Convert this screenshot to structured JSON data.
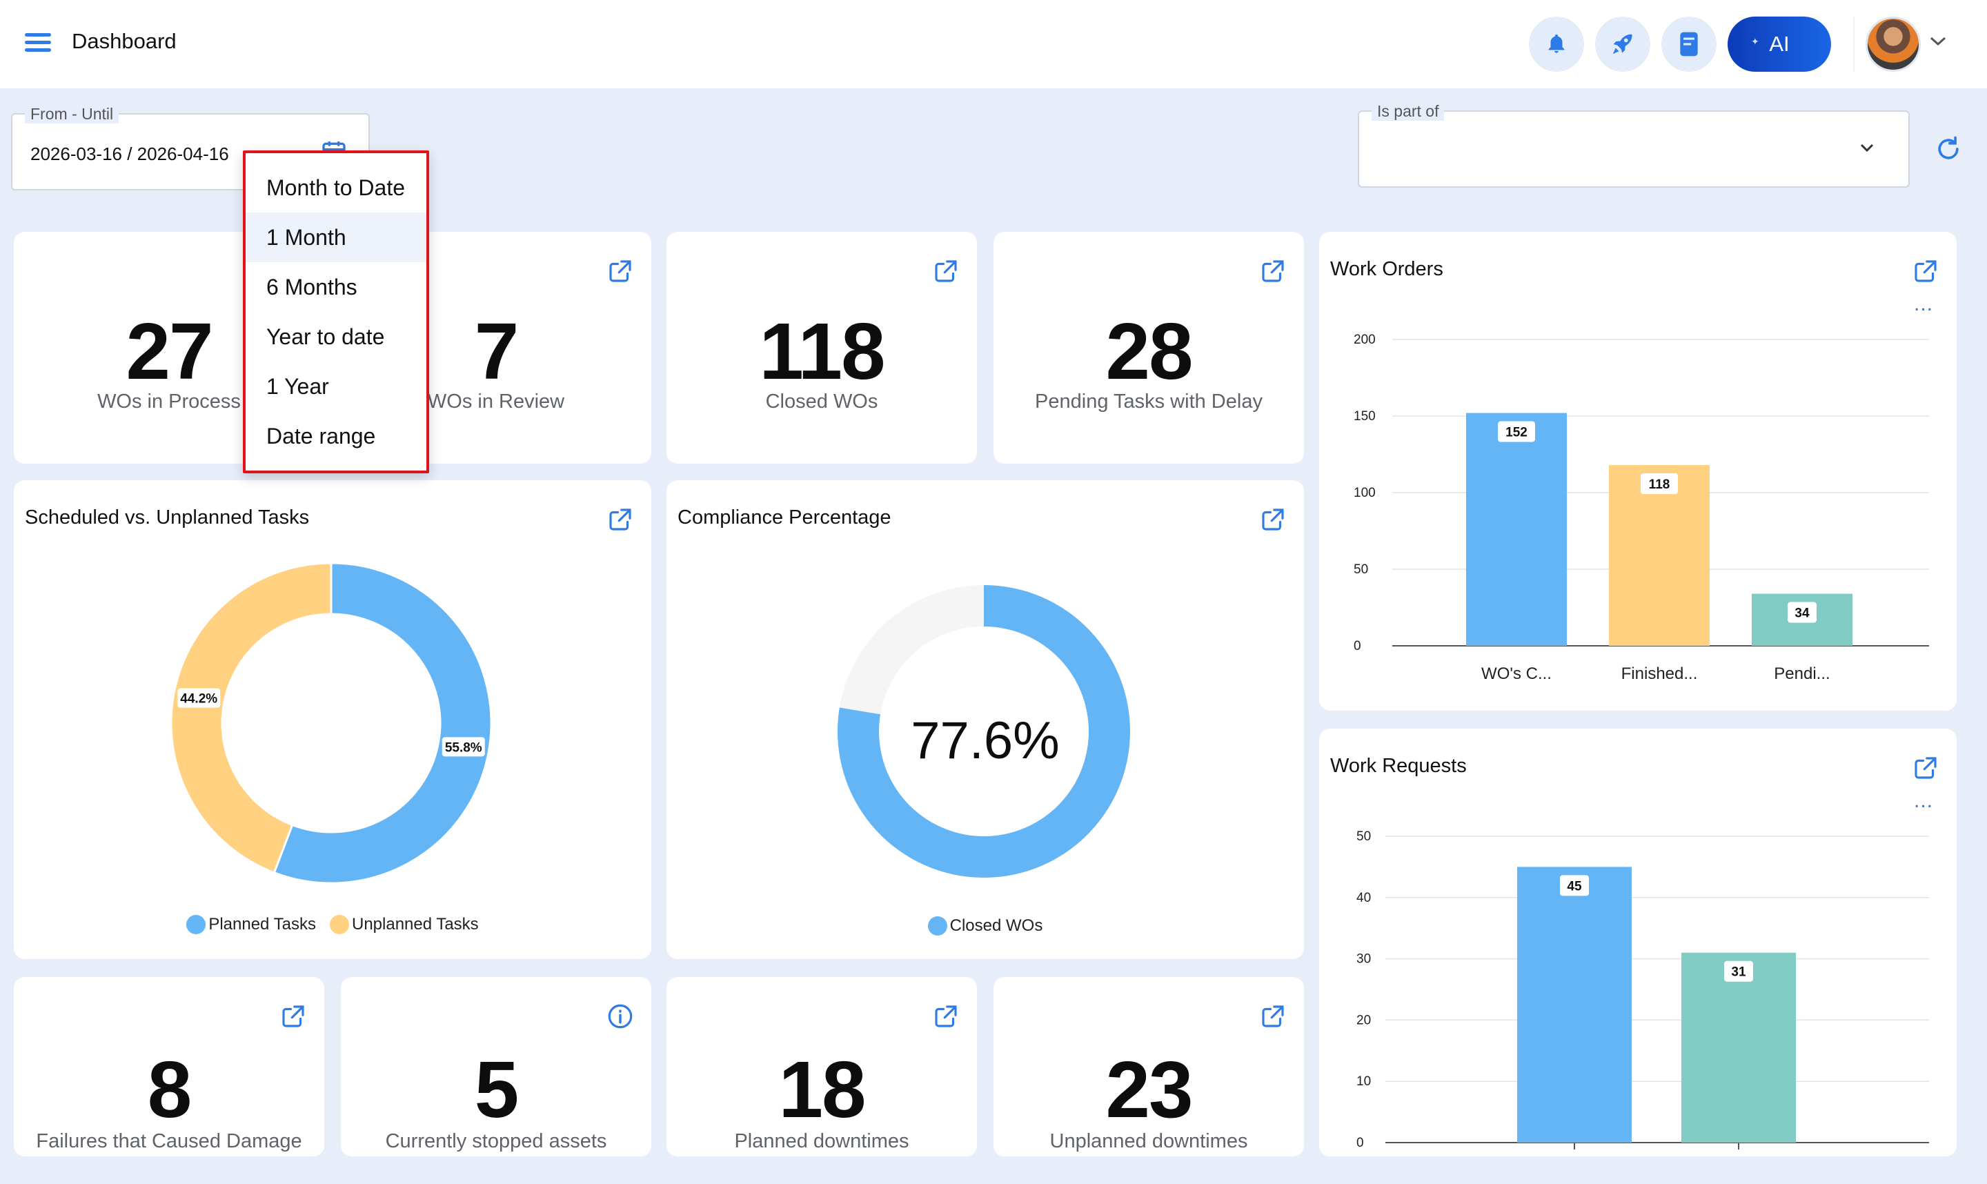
{
  "header": {
    "title": "Dashboard",
    "ai_label": "AI"
  },
  "filters": {
    "date_legend": "From - Until",
    "date_value": "2026-03-16 / 2026-04-16",
    "part_legend": "Is part of",
    "part_value": ""
  },
  "date_menu": {
    "items": [
      "Month to Date",
      "1 Month",
      "6 Months",
      "Year to date",
      "1 Year",
      "Date range"
    ],
    "highlighted": "1 Month"
  },
  "kpis_top": [
    {
      "value": "27",
      "label": "WOs in Process"
    },
    {
      "value": "7",
      "label": "WOs in Review"
    },
    {
      "value": "118",
      "label": "Closed WOs"
    },
    {
      "value": "28",
      "label": "Pending Tasks with Delay"
    }
  ],
  "kpis_bottom": [
    {
      "value": "8",
      "label": "Failures that Caused Damage"
    },
    {
      "value": "5",
      "label": "Currently stopped assets"
    },
    {
      "value": "18",
      "label": "Planned downtimes"
    },
    {
      "value": "23",
      "label": "Unplanned downtimes"
    }
  ],
  "scheduled_chart": {
    "title": "Scheduled vs. Unplanned Tasks"
  },
  "compliance_chart": {
    "title": "Compliance Percentage",
    "center_text": "77.6%"
  },
  "work_orders_chart": {
    "title": "Work Orders",
    "more": "..."
  },
  "work_requests_chart": {
    "title": "Work Requests",
    "more": "..."
  },
  "colors": {
    "blue": "#64b5f6",
    "yellow": "#ffd180",
    "teal": "#80cbc4",
    "accent": "#2f7be6",
    "gauge_track": "#f5f5f5",
    "dropdown_border": "#e0131b"
  },
  "chart_data": [
    {
      "type": "pie",
      "title": "Scheduled vs. Unplanned Tasks",
      "donut": true,
      "categories": [
        "Planned Tasks",
        "Unplanned Tasks"
      ],
      "values": [
        55.8,
        44.2
      ],
      "data_labels": [
        "55.8%",
        "44.2%"
      ],
      "colors": [
        "#64b5f6",
        "#ffd180"
      ],
      "legend": "bottom"
    },
    {
      "type": "pie",
      "title": "Compliance Percentage",
      "donut": true,
      "categories": [
        "Closed WOs"
      ],
      "values": [
        77.6
      ],
      "center_label": "77.6%",
      "colors": [
        "#64b5f6"
      ],
      "legend": "bottom"
    },
    {
      "type": "bar",
      "title": "Work Orders",
      "categories": [
        "WO's C...",
        "Finished...",
        "Pendi..."
      ],
      "values": [
        152,
        118,
        34
      ],
      "colors": [
        "#64b5f6",
        "#ffd180",
        "#80cbc4"
      ],
      "ylim": [
        0,
        200
      ],
      "yticks": [
        0,
        50,
        100,
        150,
        200
      ],
      "grid": true
    },
    {
      "type": "bar",
      "title": "Work Requests",
      "categories": [
        "",
        ""
      ],
      "values": [
        45,
        31
      ],
      "colors": [
        "#64b5f6",
        "#80cbc4"
      ],
      "ylim": [
        0,
        50
      ],
      "yticks": [
        0,
        10,
        20,
        30,
        40,
        50
      ],
      "grid": true
    }
  ]
}
